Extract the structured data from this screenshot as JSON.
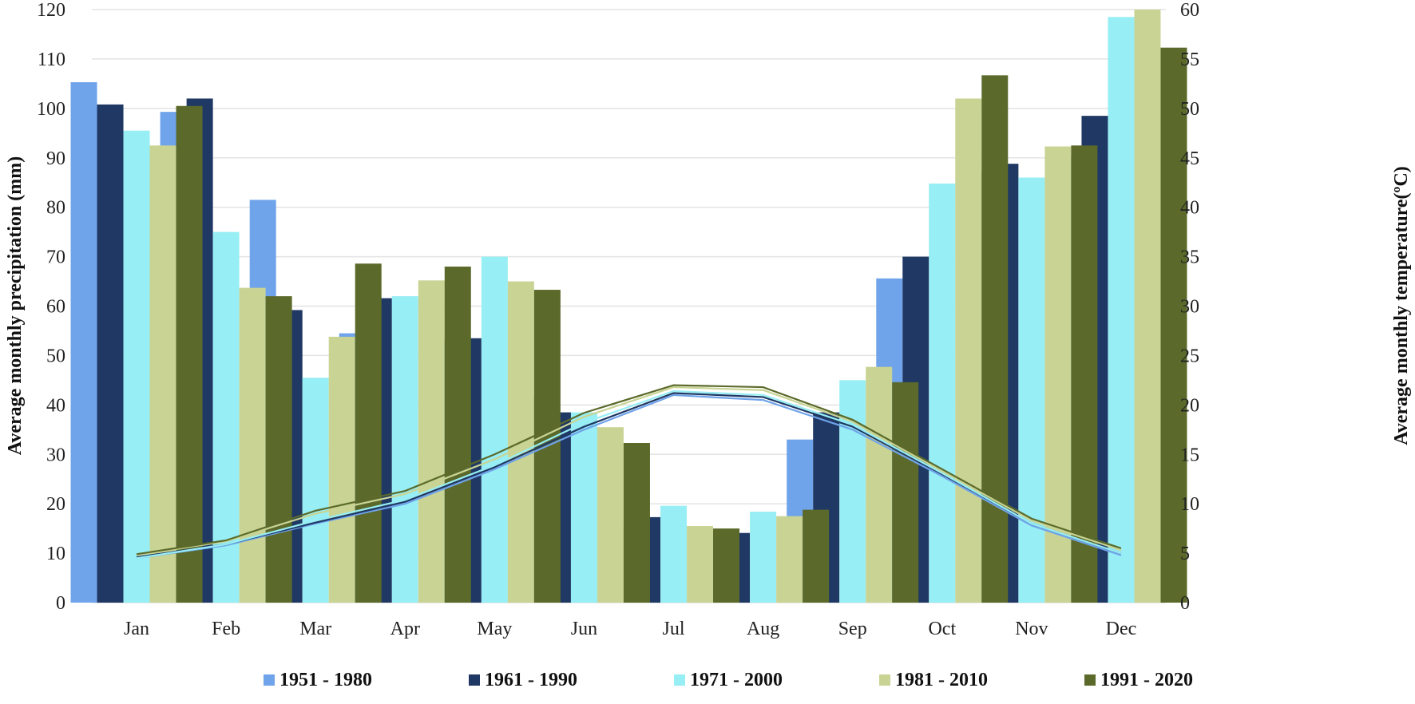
{
  "chart_data": {
    "type": "bar+line",
    "title": "",
    "categories": [
      "Jan",
      "Feb",
      "Mar",
      "Apr",
      "May",
      "Jun",
      "Jul",
      "Aug",
      "Sep",
      "Oct",
      "Nov",
      "Dec"
    ],
    "ylabel": "Average monthly precipitation (mm)",
    "y2label": "Average monthly temperature(ºC)",
    "ylim": [
      0,
      120
    ],
    "y2lim": [
      0,
      60
    ],
    "yticks": [
      0,
      10,
      20,
      30,
      40,
      50,
      60,
      70,
      80,
      90,
      100,
      110,
      120
    ],
    "y2ticks": [
      0,
      5,
      10,
      15,
      20,
      25,
      30,
      35,
      40,
      45,
      50,
      55,
      60
    ],
    "grid": true,
    "legend_position": "bottom",
    "series": [
      {
        "name": "1951 - 1980",
        "color": "#6FA3EA",
        "precipitation": [
          105.3,
          99.3,
          81.5,
          54.5,
          53.0,
          41.5,
          15.7,
          14.4,
          33.0,
          65.6,
          87.2,
          90.4
        ],
        "temperature": [
          4.5,
          5.8,
          8.0,
          10.0,
          13.5,
          17.5,
          21.0,
          20.5,
          17.5,
          12.8,
          7.8,
          4.8
        ]
      },
      {
        "name": "1961 - 1990",
        "color": "#1F3864",
        "precipitation": [
          100.8,
          102.0,
          59.2,
          61.6,
          53.5,
          38.5,
          17.3,
          14.1,
          38.5,
          70.0,
          88.8,
          98.5
        ],
        "temperature": [
          4.6,
          5.9,
          8.1,
          10.2,
          13.7,
          17.8,
          21.2,
          20.8,
          17.8,
          13.0,
          8.0,
          5.0
        ]
      },
      {
        "name": "1971 - 2000",
        "color": "#97EEF4",
        "precipitation": [
          95.5,
          75.0,
          45.5,
          62.0,
          70.0,
          38.5,
          19.6,
          18.4,
          45.0,
          84.8,
          86.0,
          118.5
        ],
        "temperature": [
          4.5,
          5.9,
          8.3,
          10.4,
          13.9,
          18.2,
          21.4,
          21.0,
          18.0,
          13.1,
          8.0,
          5.0
        ]
      },
      {
        "name": "1981 - 2010",
        "color": "#C9D494",
        "precipitation": [
          92.5,
          63.7,
          53.8,
          65.2,
          65.0,
          35.5,
          15.5,
          17.5,
          47.7,
          102.0,
          92.3,
          120.0
        ],
        "temperature": [
          4.8,
          6.2,
          9.0,
          11.0,
          14.5,
          18.8,
          21.8,
          21.5,
          18.3,
          13.3,
          8.3,
          5.3
        ]
      },
      {
        "name": "1991 - 2020",
        "color": "#5B6A2A",
        "precipitation": [
          100.5,
          62.0,
          68.6,
          68.0,
          63.3,
          32.3,
          15.0,
          18.8,
          44.6,
          106.7,
          92.5,
          112.3
        ],
        "temperature": [
          4.9,
          6.3,
          9.3,
          11.3,
          15.0,
          19.2,
          22.0,
          21.8,
          18.5,
          13.5,
          8.5,
          5.5
        ]
      }
    ]
  }
}
